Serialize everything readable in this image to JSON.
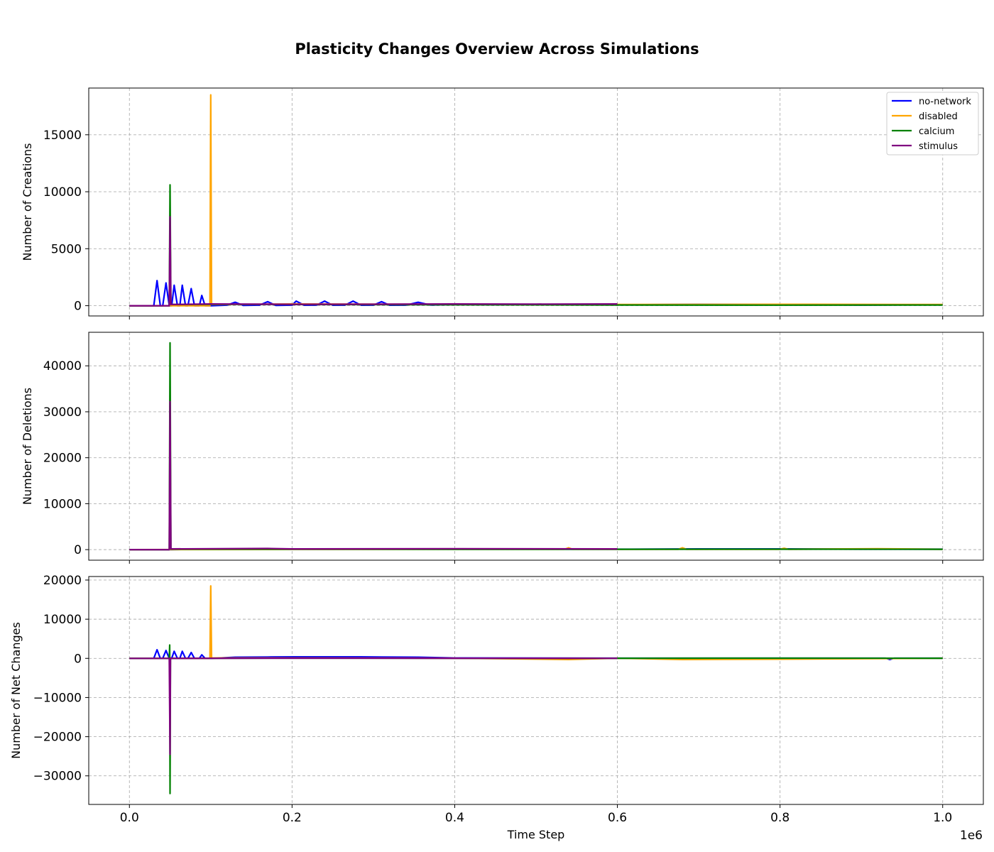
{
  "chart_data": {
    "type": "line",
    "title": "Plasticity Changes Overview Across Simulations",
    "xlabel": "Time Step",
    "x_offset_label": "1e6",
    "xlim": [
      -0.05,
      1.05
    ],
    "x_ticks": [
      0.0,
      0.2,
      0.4,
      0.6,
      0.8,
      1.0
    ],
    "x_tick_labels": [
      "0.0",
      "0.2",
      "0.4",
      "0.6",
      "0.8",
      "1.0"
    ],
    "grid": true,
    "legend": {
      "placement": "upper right",
      "entries": [
        {
          "name": "no-network",
          "color": "#0000ff"
        },
        {
          "name": "disabled",
          "color": "#ffa500"
        },
        {
          "name": "calcium",
          "color": "#008000"
        },
        {
          "name": "stimulus",
          "color": "#800080"
        }
      ]
    },
    "panels": [
      {
        "ylabel": "Number of Creations",
        "ylim": [
          -900,
          19100
        ],
        "y_ticks": [
          0,
          5000,
          10000,
          15000
        ],
        "y_tick_labels": [
          "0",
          "5000",
          "10000",
          "15000"
        ],
        "series": [
          {
            "name": "no-network",
            "color": "#0000ff",
            "x": [
              0.0,
              0.03,
              0.034,
              0.038,
              0.041,
              0.045,
              0.049,
              0.052,
              0.055,
              0.059,
              0.062,
              0.065,
              0.069,
              0.072,
              0.076,
              0.08,
              0.086,
              0.089,
              0.093,
              0.1,
              0.12,
              0.13,
              0.14,
              0.16,
              0.17,
              0.18,
              0.2,
              0.205,
              0.215,
              0.23,
              0.24,
              0.25,
              0.265,
              0.275,
              0.285,
              0.3,
              0.31,
              0.32,
              0.34,
              0.355,
              0.37,
              0.4,
              0.45,
              0.5,
              0.55,
              0.6,
              0.7,
              0.8,
              0.9,
              1.0
            ],
            "y": [
              0,
              0,
              2200,
              0,
              0,
              2000,
              0,
              0,
              1800,
              0,
              0,
              1800,
              0,
              0,
              1500,
              0,
              0,
              900,
              0,
              0,
              50,
              300,
              20,
              50,
              350,
              30,
              50,
              400,
              40,
              50,
              400,
              40,
              50,
              400,
              40,
              50,
              350,
              40,
              50,
              300,
              60,
              100,
              80,
              120,
              100,
              80,
              120,
              100,
              60,
              80
            ]
          },
          {
            "name": "disabled",
            "color": "#ffa500",
            "x": [
              0.0,
              0.099,
              0.1,
              0.101,
              0.2,
              0.4,
              0.6,
              0.8,
              1.0
            ],
            "y": [
              0,
              0,
              18500,
              100,
              150,
              120,
              100,
              120,
              100
            ]
          },
          {
            "name": "calcium",
            "color": "#008000",
            "x": [
              0.0,
              0.049,
              0.05,
              0.051,
              0.1,
              0.2,
              0.4,
              0.6,
              0.8,
              1.0
            ],
            "y": [
              0,
              0,
              10600,
              100,
              120,
              100,
              80,
              60,
              50,
              60
            ]
          },
          {
            "name": "stimulus",
            "color": "#800080",
            "x": [
              0.0,
              0.049,
              0.05,
              0.051,
              0.1,
              0.2,
              0.3,
              0.4,
              0.5,
              0.6
            ],
            "y": [
              0,
              0,
              7800,
              100,
              150,
              120,
              130,
              150,
              140,
              150
            ]
          }
        ]
      },
      {
        "ylabel": "Number of Deletions",
        "ylim": [
          -2300,
          47300
        ],
        "y_ticks": [
          0,
          10000,
          20000,
          30000,
          40000
        ],
        "y_tick_labels": [
          "0",
          "10000",
          "20000",
          "30000",
          "40000"
        ],
        "series": [
          {
            "name": "no-network",
            "color": "#0000ff",
            "x": [
              0.0,
              0.05,
              0.1,
              0.2,
              0.4,
              0.6,
              0.7,
              0.8,
              0.9,
              1.0
            ],
            "y": [
              0,
              0,
              100,
              100,
              100,
              100,
              150,
              150,
              100,
              100
            ]
          },
          {
            "name": "disabled",
            "color": "#ffa500",
            "x": [
              0.0,
              0.2,
              0.4,
              0.535,
              0.54,
              0.545,
              0.6,
              0.675,
              0.68,
              0.685,
              0.8,
              0.805,
              0.81,
              0.92,
              1.0
            ],
            "y": [
              0,
              50,
              80,
              80,
              400,
              80,
              80,
              80,
              400,
              80,
              80,
              300,
              80,
              200,
              80
            ]
          },
          {
            "name": "calcium",
            "color": "#008000",
            "x": [
              0.0,
              0.049,
              0.05,
              0.051,
              0.2,
              0.4,
              0.6,
              0.8,
              1.0
            ],
            "y": [
              0,
              0,
              45000,
              100,
              100,
              80,
              80,
              100,
              80
            ]
          },
          {
            "name": "stimulus",
            "color": "#800080",
            "x": [
              0.0,
              0.049,
              0.05,
              0.051,
              0.17,
              0.2,
              0.4,
              0.6
            ],
            "y": [
              0,
              0,
              32200,
              150,
              250,
              150,
              200,
              150
            ]
          }
        ]
      },
      {
        "ylabel": "Number of Net Changes",
        "ylim": [
          -37300,
          20900
        ],
        "y_ticks": [
          -30000,
          -20000,
          -10000,
          0,
          10000,
          20000
        ],
        "y_tick_labels": [
          "−30000",
          "−20000",
          "−10000",
          "0",
          "10000",
          "20000"
        ],
        "series": [
          {
            "name": "no-network",
            "color": "#0000ff",
            "x": [
              0.0,
              0.03,
              0.034,
              0.038,
              0.041,
              0.045,
              0.049,
              0.052,
              0.055,
              0.059,
              0.062,
              0.065,
              0.069,
              0.072,
              0.076,
              0.08,
              0.086,
              0.089,
              0.093,
              0.1,
              0.13,
              0.17,
              0.205,
              0.24,
              0.275,
              0.31,
              0.355,
              0.4,
              0.6,
              0.8,
              0.93,
              0.935,
              0.94,
              1.0
            ],
            "y": [
              0,
              0,
              2200,
              0,
              0,
              2000,
              0,
              0,
              1800,
              0,
              0,
              1800,
              0,
              0,
              1500,
              0,
              0,
              900,
              0,
              0,
              300,
              350,
              400,
              400,
              400,
              350,
              300,
              100,
              50,
              50,
              50,
              -300,
              50,
              50
            ]
          },
          {
            "name": "disabled",
            "color": "#ffa500",
            "x": [
              0.0,
              0.099,
              0.1,
              0.101,
              0.2,
              0.4,
              0.54,
              0.6,
              0.68,
              0.8,
              1.0
            ],
            "y": [
              0,
              0,
              18500,
              100,
              100,
              50,
              -300,
              50,
              -300,
              -200,
              50
            ]
          },
          {
            "name": "calcium",
            "color": "#008000",
            "x": [
              0.0,
              0.049,
              0.0495,
              0.05,
              0.0505,
              0.051,
              0.2,
              0.4,
              0.6,
              0.8,
              1.0
            ],
            "y": [
              0,
              0,
              3400,
              -34500,
              50,
              0,
              50,
              30,
              30,
              50,
              30
            ]
          },
          {
            "name": "stimulus",
            "color": "#800080",
            "x": [
              0.0,
              0.049,
              0.05,
              0.0505,
              0.051,
              0.2,
              0.4,
              0.6
            ],
            "y": [
              0,
              0,
              -24500,
              100,
              0,
              50,
              30,
              20
            ]
          }
        ]
      }
    ]
  }
}
